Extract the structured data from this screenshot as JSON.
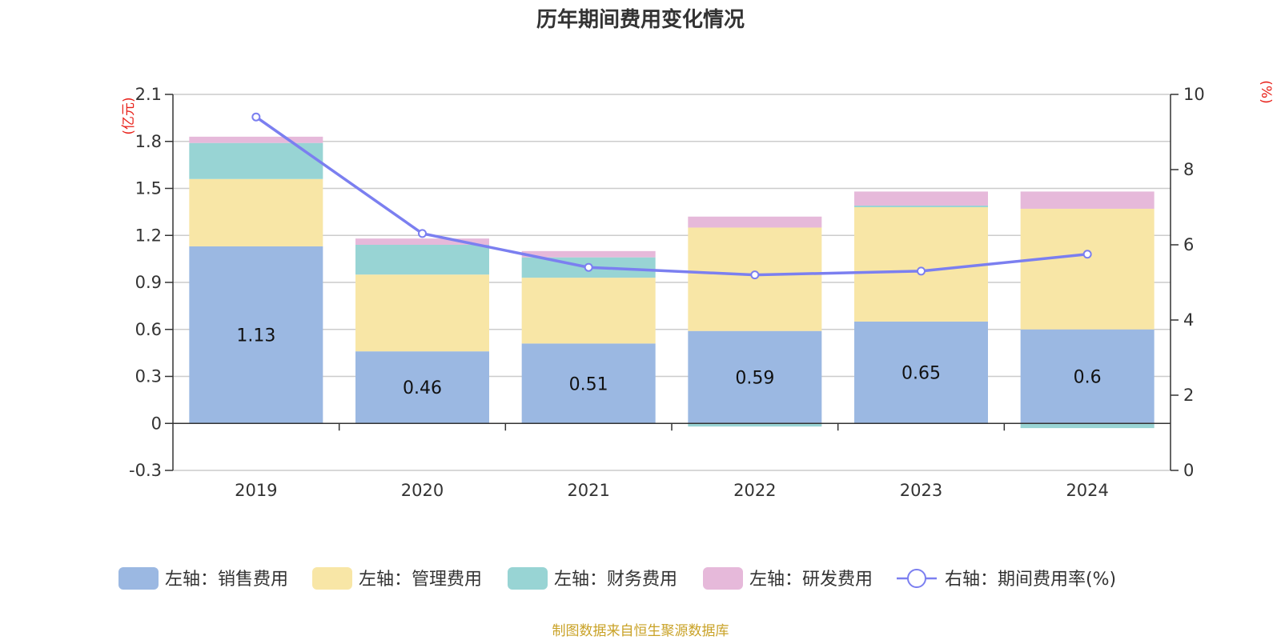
{
  "chart_data": {
    "type": "bar",
    "stacked": true,
    "title": "历年期间费用变化情况",
    "categories": [
      "2019",
      "2020",
      "2021",
      "2022",
      "2023",
      "2024"
    ],
    "y_left": {
      "unit": "(亿元)",
      "ylim": [
        -0.3,
        2.1
      ],
      "ticks": [
        "2.1",
        "1.8",
        "1.5",
        "1.2",
        "0.9",
        "0.6",
        "0.3",
        "0",
        "-0.3"
      ]
    },
    "y_right": {
      "unit": "(%)",
      "ylim": [
        0,
        10
      ],
      "ticks": [
        "10",
        "8",
        "6",
        "4",
        "2",
        "0"
      ]
    },
    "series": [
      {
        "name": "左轴：销售费用",
        "type": "bar",
        "axis": "left",
        "color": "#9bb8e2",
        "values": [
          1.13,
          0.46,
          0.51,
          0.59,
          0.65,
          0.6
        ],
        "labels": [
          "1.13",
          "0.46",
          "0.51",
          "0.59",
          "0.65",
          "0.6"
        ]
      },
      {
        "name": "左轴：管理费用",
        "type": "bar",
        "axis": "left",
        "color": "#f8e6a6",
        "values": [
          0.43,
          0.49,
          0.42,
          0.66,
          0.73,
          0.77
        ]
      },
      {
        "name": "左轴：财务费用",
        "type": "bar",
        "axis": "left",
        "color": "#98d4d4",
        "values": [
          0.23,
          0.19,
          0.13,
          -0.02,
          0.01,
          -0.03
        ]
      },
      {
        "name": "左轴：研发费用",
        "type": "bar",
        "axis": "left",
        "color": "#e6b9da",
        "values": [
          0.04,
          0.04,
          0.04,
          0.07,
          0.09,
          0.11
        ]
      },
      {
        "name": "右轴：期间费用率(%)",
        "type": "line",
        "axis": "right",
        "color": "#7b7ff0",
        "values": [
          9.4,
          6.3,
          5.4,
          5.2,
          5.3,
          5.75
        ]
      }
    ],
    "grid": true,
    "legend_position": "bottom",
    "source": "制图数据来自恒生聚源数据库"
  }
}
